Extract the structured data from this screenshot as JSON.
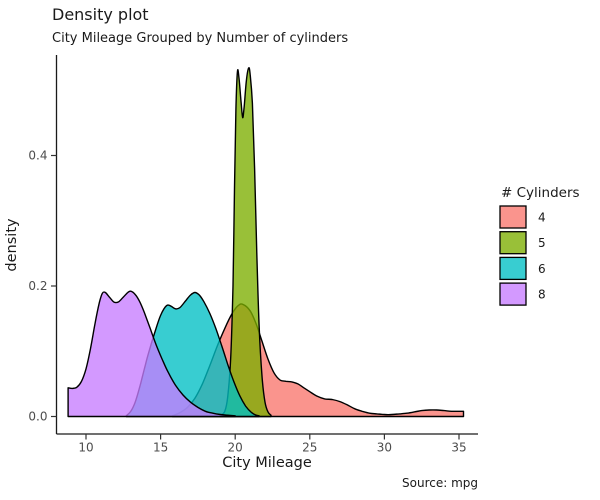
{
  "header": {
    "title": "Density plot",
    "subtitle": "City Mileage Grouped by Number of cylinders"
  },
  "caption": "Source: mpg",
  "axes": {
    "x": {
      "label": "City Mileage",
      "ticks": [
        10,
        15,
        20,
        25,
        30,
        35
      ]
    },
    "y": {
      "label": "density",
      "ticks": [
        0.0,
        0.2,
        0.4
      ]
    }
  },
  "legend": {
    "title": "# Cylinders",
    "entries": [
      {
        "label": "4",
        "color": "#F8766D"
      },
      {
        "label": "5",
        "color": "#7CAE00"
      },
      {
        "label": "6",
        "color": "#00BFC4"
      },
      {
        "label": "8",
        "color": "#C77CFF"
      }
    ]
  },
  "chart_data": {
    "type": "area",
    "subtype": "density",
    "title": "Density plot",
    "subtitle": "City Mileage Grouped by Number of cylinders",
    "xlabel": "City Mileage",
    "ylabel": "density",
    "xlim": [
      8.0,
      36.3
    ],
    "ylim": [
      0,
      0.554
    ],
    "x_ticks": [
      10,
      15,
      20,
      25,
      30,
      35
    ],
    "y_ticks": [
      0.0,
      0.2,
      0.4
    ],
    "grid": false,
    "legend_title": "# Cylinders",
    "legend_position": "right",
    "fill_alpha": 0.78,
    "series": [
      {
        "name": "4",
        "color": "#F8766D",
        "points": [
          [
            15.8,
            0.001
          ],
          [
            16.3,
            0.006
          ],
          [
            16.8,
            0.014
          ],
          [
            17.3,
            0.028
          ],
          [
            17.8,
            0.05
          ],
          [
            18.3,
            0.078
          ],
          [
            18.8,
            0.108
          ],
          [
            19.3,
            0.135
          ],
          [
            19.8,
            0.158
          ],
          [
            20.2,
            0.17
          ],
          [
            20.5,
            0.172
          ],
          [
            21.0,
            0.162
          ],
          [
            21.4,
            0.142
          ],
          [
            21.8,
            0.115
          ],
          [
            22.2,
            0.088
          ],
          [
            22.6,
            0.067
          ],
          [
            23.0,
            0.056
          ],
          [
            23.4,
            0.054
          ],
          [
            23.8,
            0.053
          ],
          [
            24.2,
            0.05
          ],
          [
            24.6,
            0.044
          ],
          [
            25.0,
            0.038
          ],
          [
            25.5,
            0.031
          ],
          [
            26.0,
            0.027
          ],
          [
            26.5,
            0.026
          ],
          [
            27.0,
            0.023
          ],
          [
            27.5,
            0.018
          ],
          [
            28.0,
            0.012
          ],
          [
            28.5,
            0.008
          ],
          [
            29.0,
            0.005
          ],
          [
            29.5,
            0.004
          ],
          [
            30.0,
            0.003
          ],
          [
            30.5,
            0.003
          ],
          [
            31.0,
            0.004
          ],
          [
            31.5,
            0.005
          ],
          [
            32.0,
            0.007
          ],
          [
            32.5,
            0.009
          ],
          [
            33.0,
            0.01
          ],
          [
            33.5,
            0.01
          ],
          [
            34.0,
            0.009
          ],
          [
            34.5,
            0.008
          ],
          [
            35.0,
            0.008
          ],
          [
            35.3,
            0.008
          ]
        ]
      },
      {
        "name": "5",
        "color": "#7CAE00",
        "points": [
          [
            19.0,
            0.001
          ],
          [
            19.3,
            0.008
          ],
          [
            19.5,
            0.03
          ],
          [
            19.7,
            0.09
          ],
          [
            19.85,
            0.2
          ],
          [
            19.95,
            0.35
          ],
          [
            20.05,
            0.47
          ],
          [
            20.15,
            0.528
          ],
          [
            20.25,
            0.52
          ],
          [
            20.4,
            0.48
          ],
          [
            20.5,
            0.458
          ],
          [
            20.6,
            0.475
          ],
          [
            20.75,
            0.515
          ],
          [
            20.9,
            0.534
          ],
          [
            21.0,
            0.525
          ],
          [
            21.15,
            0.48
          ],
          [
            21.3,
            0.38
          ],
          [
            21.45,
            0.25
          ],
          [
            21.6,
            0.14
          ],
          [
            21.8,
            0.06
          ],
          [
            22.0,
            0.022
          ],
          [
            22.2,
            0.007
          ],
          [
            22.4,
            0.002
          ]
        ]
      },
      {
        "name": "6",
        "color": "#00BFC4",
        "points": [
          [
            12.7,
            0.001
          ],
          [
            13.0,
            0.008
          ],
          [
            13.3,
            0.022
          ],
          [
            13.6,
            0.045
          ],
          [
            13.9,
            0.072
          ],
          [
            14.2,
            0.098
          ],
          [
            14.6,
            0.128
          ],
          [
            15.0,
            0.155
          ],
          [
            15.4,
            0.17
          ],
          [
            15.7,
            0.169
          ],
          [
            16.0,
            0.165
          ],
          [
            16.3,
            0.167
          ],
          [
            16.7,
            0.178
          ],
          [
            17.0,
            0.186
          ],
          [
            17.3,
            0.19
          ],
          [
            17.6,
            0.186
          ],
          [
            17.9,
            0.176
          ],
          [
            18.3,
            0.158
          ],
          [
            18.7,
            0.135
          ],
          [
            19.1,
            0.108
          ],
          [
            19.5,
            0.08
          ],
          [
            19.9,
            0.054
          ],
          [
            20.3,
            0.032
          ],
          [
            20.7,
            0.016
          ],
          [
            21.1,
            0.006
          ],
          [
            21.4,
            0.002
          ],
          [
            21.6,
            0.001
          ]
        ]
      },
      {
        "name": "8",
        "color": "#C77CFF",
        "points": [
          [
            8.8,
            0.044
          ],
          [
            9.1,
            0.043
          ],
          [
            9.4,
            0.045
          ],
          [
            9.7,
            0.054
          ],
          [
            10.0,
            0.073
          ],
          [
            10.3,
            0.104
          ],
          [
            10.6,
            0.142
          ],
          [
            10.9,
            0.175
          ],
          [
            11.1,
            0.189
          ],
          [
            11.3,
            0.19
          ],
          [
            11.6,
            0.182
          ],
          [
            11.9,
            0.175
          ],
          [
            12.2,
            0.176
          ],
          [
            12.5,
            0.183
          ],
          [
            12.8,
            0.19
          ],
          [
            13.0,
            0.192
          ],
          [
            13.3,
            0.187
          ],
          [
            13.6,
            0.176
          ],
          [
            13.9,
            0.16
          ],
          [
            14.3,
            0.135
          ],
          [
            14.7,
            0.11
          ],
          [
            15.1,
            0.088
          ],
          [
            15.5,
            0.068
          ],
          [
            16.0,
            0.048
          ],
          [
            16.5,
            0.033
          ],
          [
            17.0,
            0.022
          ],
          [
            17.5,
            0.014
          ],
          [
            18.0,
            0.008
          ],
          [
            18.5,
            0.005
          ],
          [
            19.0,
            0.003
          ],
          [
            19.5,
            0.002
          ],
          [
            20.0,
            0.001
          ]
        ]
      }
    ]
  }
}
